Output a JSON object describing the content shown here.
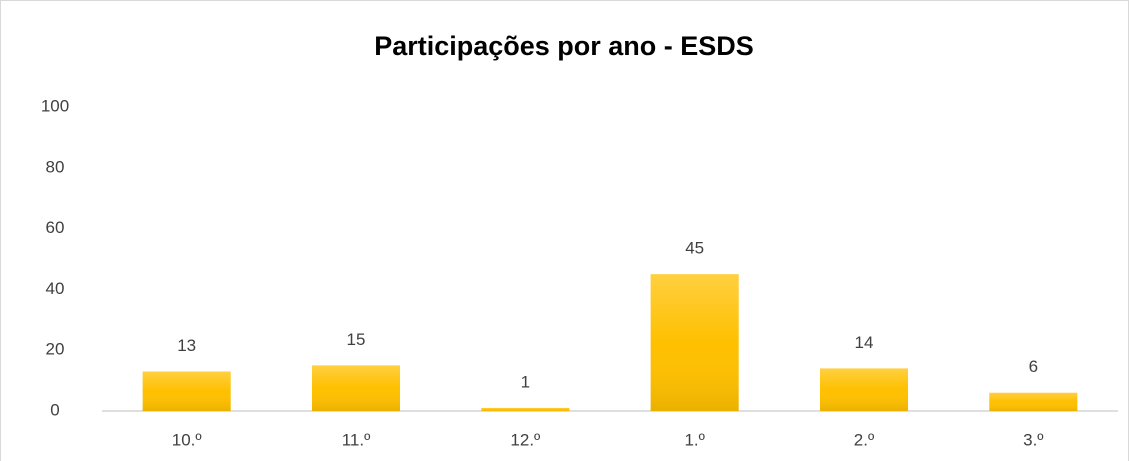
{
  "chart_data": {
    "type": "bar",
    "title": "Participações por ano - ESDS",
    "categories": [
      "10.º",
      "11.º",
      "12.º",
      "1.º",
      "2.º",
      "3.º"
    ],
    "values": [
      13,
      15,
      1,
      45,
      14,
      6
    ],
    "color": "#ffc000",
    "ylim": [
      0,
      100
    ],
    "yticks": [
      0,
      20,
      40,
      60,
      80,
      100
    ],
    "grid": false
  }
}
